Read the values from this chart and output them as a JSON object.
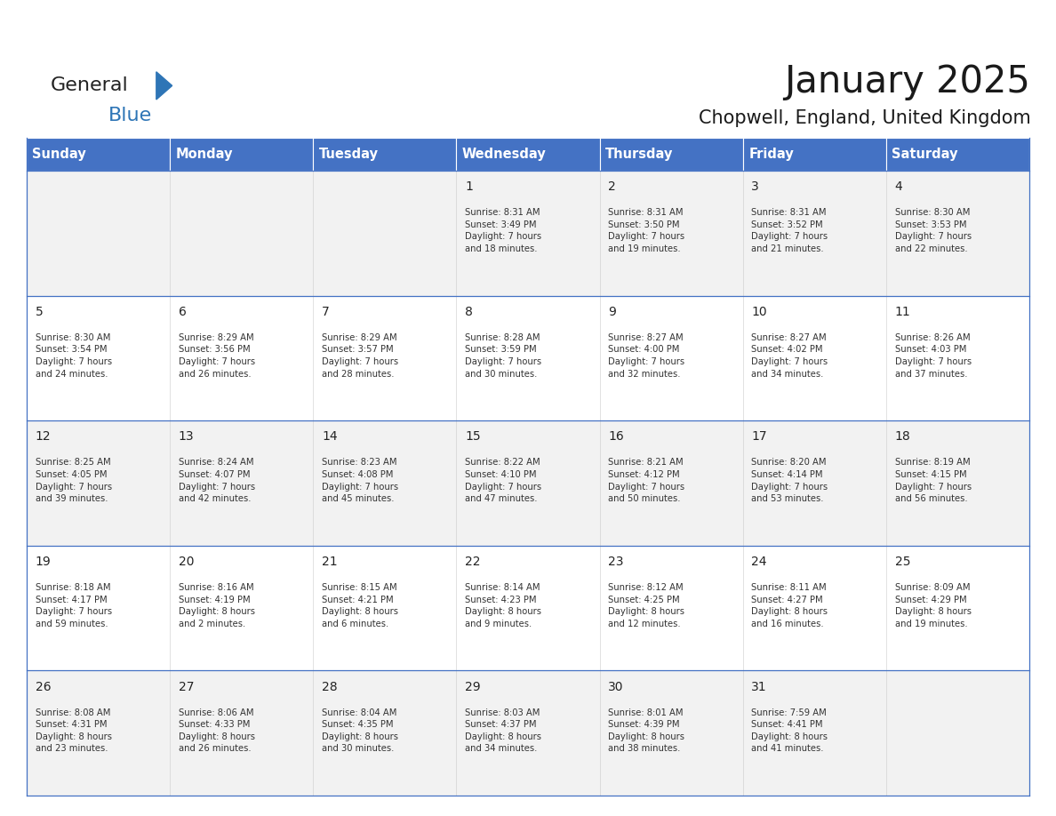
{
  "title": "January 2025",
  "subtitle": "Chopwell, England, United Kingdom",
  "header_color": "#4472C4",
  "header_text_color": "#FFFFFF",
  "border_color": "#4472C4",
  "text_color": "#222222",
  "info_color": "#333333",
  "row_bg_even": "#F2F2F2",
  "row_bg_odd": "#FFFFFF",
  "day_names": [
    "Sunday",
    "Monday",
    "Tuesday",
    "Wednesday",
    "Thursday",
    "Friday",
    "Saturday"
  ],
  "weeks": [
    [
      {
        "day": "",
        "info": ""
      },
      {
        "day": "",
        "info": ""
      },
      {
        "day": "",
        "info": ""
      },
      {
        "day": "1",
        "info": "Sunrise: 8:31 AM\nSunset: 3:49 PM\nDaylight: 7 hours\nand 18 minutes."
      },
      {
        "day": "2",
        "info": "Sunrise: 8:31 AM\nSunset: 3:50 PM\nDaylight: 7 hours\nand 19 minutes."
      },
      {
        "day": "3",
        "info": "Sunrise: 8:31 AM\nSunset: 3:52 PM\nDaylight: 7 hours\nand 21 minutes."
      },
      {
        "day": "4",
        "info": "Sunrise: 8:30 AM\nSunset: 3:53 PM\nDaylight: 7 hours\nand 22 minutes."
      }
    ],
    [
      {
        "day": "5",
        "info": "Sunrise: 8:30 AM\nSunset: 3:54 PM\nDaylight: 7 hours\nand 24 minutes."
      },
      {
        "day": "6",
        "info": "Sunrise: 8:29 AM\nSunset: 3:56 PM\nDaylight: 7 hours\nand 26 minutes."
      },
      {
        "day": "7",
        "info": "Sunrise: 8:29 AM\nSunset: 3:57 PM\nDaylight: 7 hours\nand 28 minutes."
      },
      {
        "day": "8",
        "info": "Sunrise: 8:28 AM\nSunset: 3:59 PM\nDaylight: 7 hours\nand 30 minutes."
      },
      {
        "day": "9",
        "info": "Sunrise: 8:27 AM\nSunset: 4:00 PM\nDaylight: 7 hours\nand 32 minutes."
      },
      {
        "day": "10",
        "info": "Sunrise: 8:27 AM\nSunset: 4:02 PM\nDaylight: 7 hours\nand 34 minutes."
      },
      {
        "day": "11",
        "info": "Sunrise: 8:26 AM\nSunset: 4:03 PM\nDaylight: 7 hours\nand 37 minutes."
      }
    ],
    [
      {
        "day": "12",
        "info": "Sunrise: 8:25 AM\nSunset: 4:05 PM\nDaylight: 7 hours\nand 39 minutes."
      },
      {
        "day": "13",
        "info": "Sunrise: 8:24 AM\nSunset: 4:07 PM\nDaylight: 7 hours\nand 42 minutes."
      },
      {
        "day": "14",
        "info": "Sunrise: 8:23 AM\nSunset: 4:08 PM\nDaylight: 7 hours\nand 45 minutes."
      },
      {
        "day": "15",
        "info": "Sunrise: 8:22 AM\nSunset: 4:10 PM\nDaylight: 7 hours\nand 47 minutes."
      },
      {
        "day": "16",
        "info": "Sunrise: 8:21 AM\nSunset: 4:12 PM\nDaylight: 7 hours\nand 50 minutes."
      },
      {
        "day": "17",
        "info": "Sunrise: 8:20 AM\nSunset: 4:14 PM\nDaylight: 7 hours\nand 53 minutes."
      },
      {
        "day": "18",
        "info": "Sunrise: 8:19 AM\nSunset: 4:15 PM\nDaylight: 7 hours\nand 56 minutes."
      }
    ],
    [
      {
        "day": "19",
        "info": "Sunrise: 8:18 AM\nSunset: 4:17 PM\nDaylight: 7 hours\nand 59 minutes."
      },
      {
        "day": "20",
        "info": "Sunrise: 8:16 AM\nSunset: 4:19 PM\nDaylight: 8 hours\nand 2 minutes."
      },
      {
        "day": "21",
        "info": "Sunrise: 8:15 AM\nSunset: 4:21 PM\nDaylight: 8 hours\nand 6 minutes."
      },
      {
        "day": "22",
        "info": "Sunrise: 8:14 AM\nSunset: 4:23 PM\nDaylight: 8 hours\nand 9 minutes."
      },
      {
        "day": "23",
        "info": "Sunrise: 8:12 AM\nSunset: 4:25 PM\nDaylight: 8 hours\nand 12 minutes."
      },
      {
        "day": "24",
        "info": "Sunrise: 8:11 AM\nSunset: 4:27 PM\nDaylight: 8 hours\nand 16 minutes."
      },
      {
        "day": "25",
        "info": "Sunrise: 8:09 AM\nSunset: 4:29 PM\nDaylight: 8 hours\nand 19 minutes."
      }
    ],
    [
      {
        "day": "26",
        "info": "Sunrise: 8:08 AM\nSunset: 4:31 PM\nDaylight: 8 hours\nand 23 minutes."
      },
      {
        "day": "27",
        "info": "Sunrise: 8:06 AM\nSunset: 4:33 PM\nDaylight: 8 hours\nand 26 minutes."
      },
      {
        "day": "28",
        "info": "Sunrise: 8:04 AM\nSunset: 4:35 PM\nDaylight: 8 hours\nand 30 minutes."
      },
      {
        "day": "29",
        "info": "Sunrise: 8:03 AM\nSunset: 4:37 PM\nDaylight: 8 hours\nand 34 minutes."
      },
      {
        "day": "30",
        "info": "Sunrise: 8:01 AM\nSunset: 4:39 PM\nDaylight: 8 hours\nand 38 minutes."
      },
      {
        "day": "31",
        "info": "Sunrise: 7:59 AM\nSunset: 4:41 PM\nDaylight: 8 hours\nand 41 minutes."
      },
      {
        "day": "",
        "info": ""
      }
    ]
  ],
  "fig_width": 11.88,
  "fig_height": 9.18,
  "dpi": 100
}
